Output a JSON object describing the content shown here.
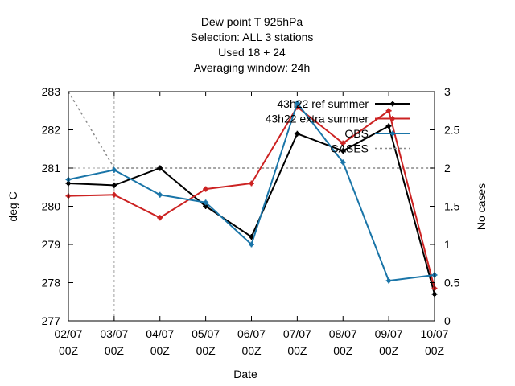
{
  "chart_data": {
    "type": "line",
    "title_lines": [
      "Dew point T 925hPa",
      "Selection: ALL       3 stations",
      "Used  18  + 24",
      "Averaging window: 24h"
    ],
    "xlabel": "Date",
    "ylabel": "deg C",
    "y2label": "No cases",
    "categories": [
      [
        "02/07",
        "00Z"
      ],
      [
        "03/07",
        "00Z"
      ],
      [
        "04/07",
        "00Z"
      ],
      [
        "05/07",
        "00Z"
      ],
      [
        "06/07",
        "00Z"
      ],
      [
        "07/07",
        "00Z"
      ],
      [
        "08/07",
        "00Z"
      ],
      [
        "09/07",
        "00Z"
      ],
      [
        "10/07",
        "00Z"
      ]
    ],
    "ylim": [
      277,
      283
    ],
    "yticks": [
      "277",
      "278",
      "279",
      "280",
      "281",
      "282",
      "283"
    ],
    "y2lim": [
      0,
      3
    ],
    "y2ticks": [
      "0",
      "0.5",
      "1",
      "1.5",
      "2",
      "2.5",
      "3"
    ],
    "grid": "dashed-gray",
    "legend_position": "top-right",
    "series": [
      {
        "legend": "43h22_ref_summer",
        "legend_display": "43h22 ref summer",
        "color": "#000000",
        "axis": "y1",
        "style": "line-points",
        "values": [
          280.6,
          280.55,
          281.0,
          280.0,
          279.2,
          281.9,
          281.45,
          282.1,
          277.7
        ]
      },
      {
        "legend": "43h22_extra_summer",
        "legend_display": "43h22 extra summer",
        "color": "#cc2222",
        "axis": "y1",
        "style": "line-points",
        "values": [
          280.27,
          280.3,
          279.7,
          280.45,
          280.6,
          282.6,
          281.65,
          282.5,
          277.85
        ]
      },
      {
        "legend": "OBS",
        "color": "#1a75a8",
        "axis": "y1",
        "style": "line-points",
        "values": [
          280.7,
          280.95,
          280.3,
          280.1,
          279.0,
          282.7,
          281.15,
          278.05,
          278.2
        ]
      },
      {
        "legend": "CASES",
        "color": "#888888",
        "axis": "y2",
        "style": "dashed",
        "values": [
          3,
          2,
          2,
          2,
          2,
          2,
          2,
          2,
          2
        ]
      }
    ]
  }
}
